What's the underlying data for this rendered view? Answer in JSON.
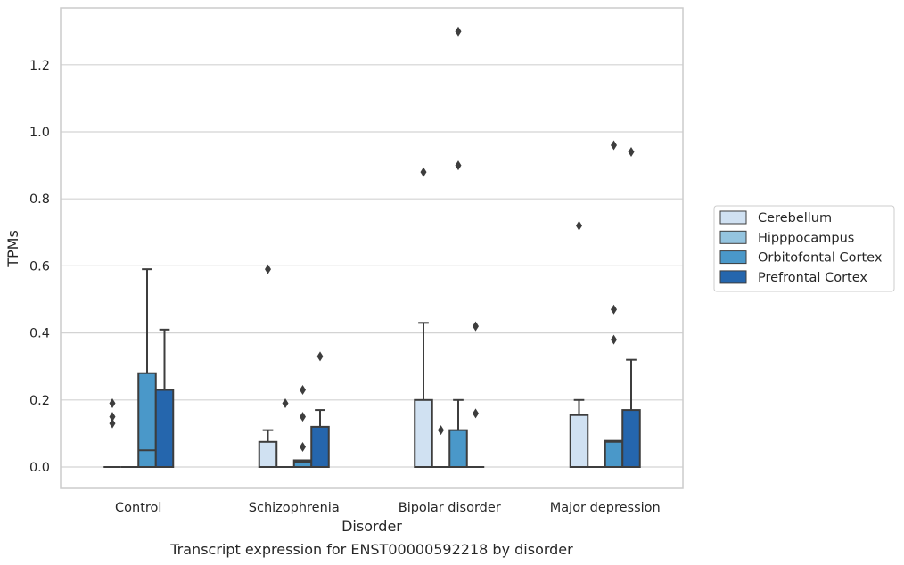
{
  "chart_data": {
    "type": "boxplot",
    "caption": "Transcript expression for ENST00000592218 by disorder",
    "xlabel": "Disorder",
    "ylabel": "TPMs",
    "ylim": [
      -0.065,
      1.37
    ],
    "yticks": [
      0.0,
      0.2,
      0.4,
      0.6,
      0.8,
      1.0,
      1.2
    ],
    "ytick_labels": [
      "0.0",
      "0.2",
      "0.4",
      "0.6",
      "0.8",
      "1.0",
      "1.2"
    ],
    "grid": "horizontal",
    "legend_position": "right",
    "categories": [
      "Control",
      "Schizophrenia",
      "Bipolar disorder",
      "Major depression"
    ],
    "series": [
      {
        "name": "Cerebellum",
        "color": "#d0e1f2",
        "boxes": [
          {
            "q1": 0,
            "median": 0,
            "q3": 0,
            "whisker_low": 0,
            "whisker_high": 0,
            "outliers": [
              0.13,
              0.15,
              0.19
            ]
          },
          {
            "q1": 0,
            "median": 0,
            "q3": 0.075,
            "whisker_low": 0,
            "whisker_high": 0.11,
            "outliers": [
              0.59
            ]
          },
          {
            "q1": 0,
            "median": 0,
            "q3": 0.2,
            "whisker_low": 0,
            "whisker_high": 0.43,
            "outliers": [
              0.88
            ]
          },
          {
            "q1": 0,
            "median": 0,
            "q3": 0.155,
            "whisker_low": 0,
            "whisker_high": 0.2,
            "outliers": [
              0.72
            ]
          }
        ]
      },
      {
        "name": "Hipppocampus",
        "color": "#94c4df",
        "boxes": [
          {
            "q1": 0,
            "median": 0,
            "q3": 0,
            "whisker_low": 0,
            "whisker_high": 0,
            "outliers": []
          },
          {
            "q1": 0,
            "median": 0,
            "q3": 0,
            "whisker_low": 0,
            "whisker_high": 0,
            "outliers": [
              0.19
            ]
          },
          {
            "q1": 0,
            "median": 0,
            "q3": 0,
            "whisker_low": 0,
            "whisker_high": 0,
            "outliers": [
              0.11
            ]
          },
          {
            "q1": 0,
            "median": 0,
            "q3": 0,
            "whisker_low": 0,
            "whisker_high": 0,
            "outliers": []
          }
        ]
      },
      {
        "name": "Orbitofontal Cortex",
        "color": "#4a98c9",
        "boxes": [
          {
            "q1": 0,
            "median": 0.05,
            "q3": 0.28,
            "whisker_low": 0,
            "whisker_high": 0.59,
            "outliers": []
          },
          {
            "q1": 0,
            "median": 0.015,
            "q3": 0.02,
            "whisker_low": 0,
            "whisker_high": 0.02,
            "outliers": [
              0.06,
              0.15,
              0.23
            ]
          },
          {
            "q1": 0,
            "median": 0,
            "q3": 0.11,
            "whisker_low": 0,
            "whisker_high": 0.2,
            "outliers": [
              0.9,
              1.3
            ]
          },
          {
            "q1": 0,
            "median": 0.075,
            "q3": 0.078,
            "whisker_low": 0,
            "whisker_high": 0.078,
            "outliers": [
              0.38,
              0.47,
              0.96
            ]
          }
        ]
      },
      {
        "name": "Prefrontal Cortex",
        "color": "#2566ad",
        "boxes": [
          {
            "q1": 0,
            "median": 0,
            "q3": 0.23,
            "whisker_low": 0,
            "whisker_high": 0.41,
            "outliers": []
          },
          {
            "q1": 0,
            "median": 0,
            "q3": 0.12,
            "whisker_low": 0,
            "whisker_high": 0.17,
            "outliers": [
              0.33
            ]
          },
          {
            "q1": 0,
            "median": 0,
            "q3": 0,
            "whisker_low": 0,
            "whisker_high": 0,
            "outliers": [
              0.16,
              0.42
            ]
          },
          {
            "q1": 0,
            "median": 0,
            "q3": 0.17,
            "whisker_low": 0,
            "whisker_high": 0.32,
            "outliers": [
              0.94
            ]
          }
        ]
      }
    ]
  }
}
